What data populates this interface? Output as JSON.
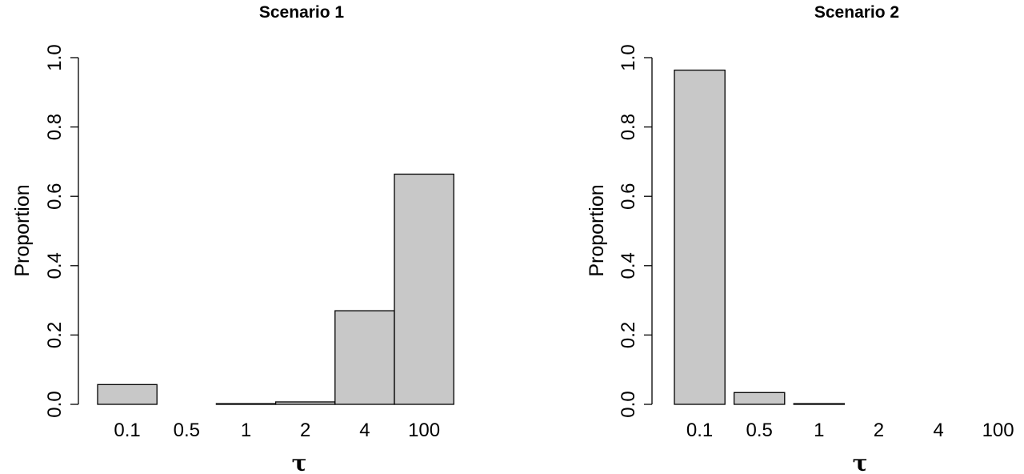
{
  "chart_data": [
    {
      "type": "bar",
      "title": "Scenario 1",
      "xlabel": "τ",
      "ylabel": "Proportion",
      "categories": [
        "0.1",
        "0.5",
        "1",
        "2",
        "4",
        "100"
      ],
      "values": [
        0.057,
        0.0,
        0.002,
        0.007,
        0.27,
        0.664
      ],
      "ylim": [
        0,
        1
      ],
      "yticks": [
        "0.0",
        "0.2",
        "0.4",
        "0.6",
        "0.8",
        "1.0"
      ],
      "bar_color": "#c8c8c8",
      "grid": false
    },
    {
      "type": "bar",
      "title": "Scenario 2",
      "xlabel": "τ",
      "ylabel": "Proportion",
      "categories": [
        "0.1",
        "0.5",
        "1",
        "2",
        "4",
        "100"
      ],
      "values": [
        0.964,
        0.034,
        0.002,
        0.0,
        0.0,
        0.0
      ],
      "ylim": [
        0,
        1
      ],
      "yticks": [
        "0.0",
        "0.2",
        "0.4",
        "0.6",
        "0.8",
        "1.0"
      ],
      "bar_color": "#c8c8c8",
      "grid": false
    }
  ]
}
